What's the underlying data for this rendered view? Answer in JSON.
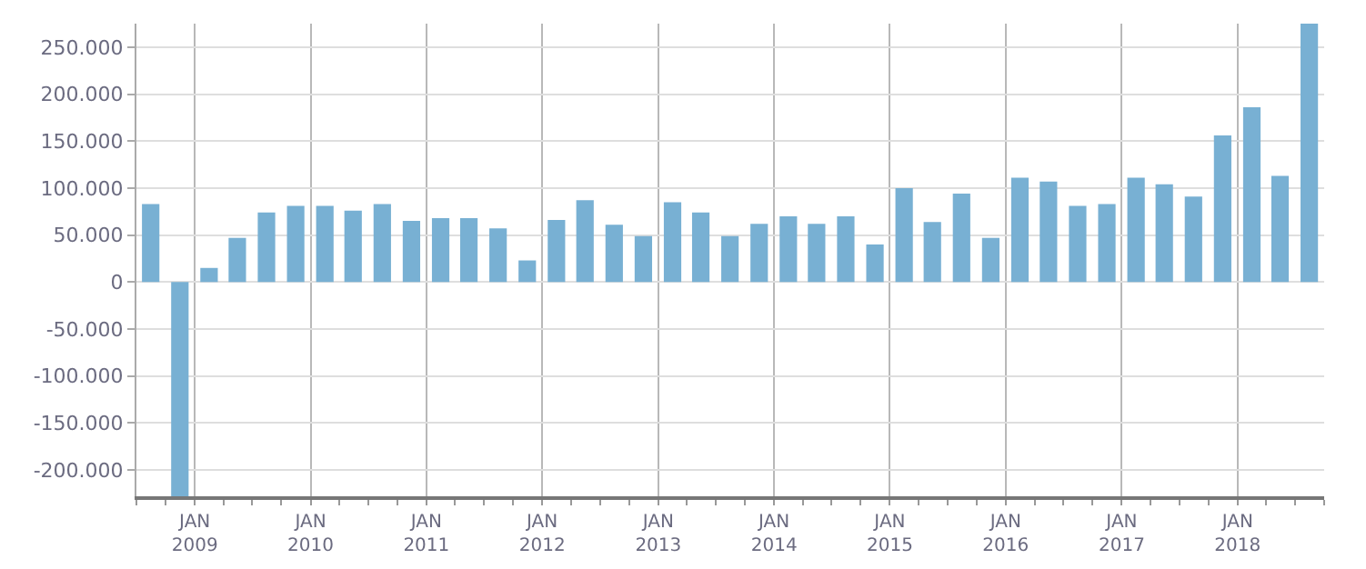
{
  "chart_data": {
    "type": "bar",
    "color": "#78b0d3",
    "x": [
      "2008-08-15",
      "2008-11-15",
      "2009-02-15",
      "2009-05-15",
      "2009-08-15",
      "2009-11-15",
      "2010-02-15",
      "2010-05-15",
      "2010-08-15",
      "2010-11-15",
      "2011-02-15",
      "2011-05-15",
      "2011-08-15",
      "2011-11-15",
      "2012-02-15",
      "2012-05-15",
      "2012-08-15",
      "2012-11-15",
      "2013-02-15",
      "2013-05-15",
      "2013-08-15",
      "2013-11-15",
      "2014-02-15",
      "2014-05-15",
      "2014-08-15",
      "2014-11-15",
      "2015-02-15",
      "2015-05-15",
      "2015-08-15",
      "2015-11-15",
      "2016-02-15",
      "2016-05-15",
      "2016-08-15",
      "2016-11-15",
      "2017-02-15",
      "2017-05-15",
      "2017-08-15",
      "2017-11-15",
      "2018-02-15",
      "2018-05-15",
      "2018-08-15"
    ],
    "values": [
      83000,
      -228000,
      15000,
      47000,
      74000,
      81000,
      81000,
      76000,
      83000,
      65000,
      68000,
      68000,
      57000,
      23000,
      66000,
      87000,
      61000,
      49000,
      85000,
      74000,
      49000,
      62000,
      70000,
      62000,
      70000,
      40000,
      100000,
      64000,
      94000,
      47000,
      111000,
      107000,
      81000,
      83000,
      111000,
      104000,
      91000,
      156000,
      186000,
      113000,
      275000
    ],
    "xlim": [
      "2008-07-01",
      "2018-10-01"
    ],
    "xticks": [
      {
        "value": "2009-01-01",
        "label": "JAN\n2009"
      },
      {
        "value": "2010-01-01",
        "label": "JAN\n2010"
      },
      {
        "value": "2011-01-01",
        "label": "JAN\n2011"
      },
      {
        "value": "2012-01-01",
        "label": "JAN\n2012"
      },
      {
        "value": "2013-01-01",
        "label": "JAN\n2013"
      },
      {
        "value": "2014-01-01",
        "label": "JAN\n2014"
      },
      {
        "value": "2015-01-01",
        "label": "JAN\n2015"
      },
      {
        "value": "2016-01-01",
        "label": "JAN\n2016"
      },
      {
        "value": "2017-01-01",
        "label": "JAN\n2017"
      },
      {
        "value": "2018-01-01",
        "label": "JAN\n2018"
      }
    ],
    "ylim": [
      -228000,
      275000
    ],
    "yticks": [
      {
        "value": -200000,
        "label": "-200.000"
      },
      {
        "value": -150000,
        "label": "-150.000"
      },
      {
        "value": -100000,
        "label": "-100.000"
      },
      {
        "value": -50000,
        "label": "-50.000"
      },
      0,
      {
        "value": 50000,
        "label": "50.000"
      },
      {
        "value": 100000,
        "label": "100.000"
      },
      {
        "value": 150000,
        "label": "150.000"
      },
      {
        "value": 200000,
        "label": "200.000"
      },
      {
        "value": 250000,
        "label": "250.000"
      }
    ],
    "grid": true
  }
}
